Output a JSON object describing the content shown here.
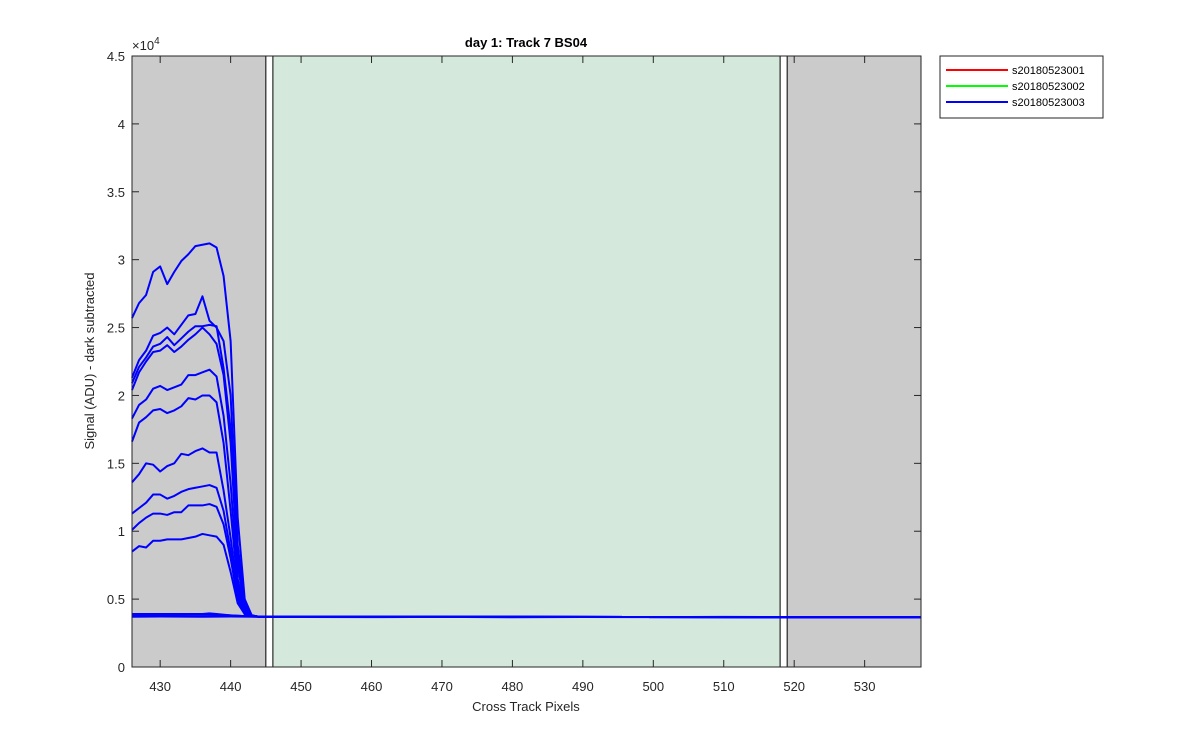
{
  "chart_data": {
    "type": "line",
    "title": "day 1: Track 7  BS04",
    "xlabel": "Cross Track Pixels",
    "ylabel": "Signal (ADU) - dark subtracted",
    "xlim": [
      426,
      538
    ],
    "ylim": [
      0,
      45000
    ],
    "y_exponent_label": "×10",
    "y_exponent_power": "4",
    "xticks": [
      430,
      440,
      450,
      460,
      470,
      480,
      490,
      500,
      510,
      520,
      530
    ],
    "yticks": [
      0,
      5000,
      10000,
      15000,
      20000,
      25000,
      30000,
      35000,
      40000,
      45000
    ],
    "ytick_labels": [
      "0",
      "0.5",
      "1",
      "1.5",
      "2",
      "2.5",
      "3",
      "3.5",
      "4",
      "4.5"
    ],
    "grid": false,
    "legend_position": "outside-top-right",
    "regions": [
      {
        "kind": "excluded",
        "x": [
          426,
          445
        ],
        "color": "#cbcbcb"
      },
      {
        "kind": "active",
        "x": [
          446,
          518
        ],
        "color": "#d5e8dc"
      },
      {
        "kind": "excluded",
        "x": [
          519,
          538
        ],
        "color": "#cbcbcb"
      }
    ],
    "region_edges": [
      445,
      446,
      518,
      519
    ],
    "series": [
      {
        "name": "s20180523001",
        "color": "#ff0000",
        "lines": []
      },
      {
        "name": "s20180523002",
        "color": "#00ff00",
        "lines": []
      },
      {
        "name": "s20180523003",
        "color": "#0000ff",
        "lines": [
          {
            "x": [
              426,
              427,
              428,
              429,
              430,
              431,
              432,
              433,
              434,
              435,
              436,
              437,
              438,
              439,
              440,
              441,
              442,
              443,
              444,
              445,
              450,
              460,
              470,
              480,
              490,
              500,
              510,
              520,
              530,
              538
            ],
            "y": [
              25700,
              26800,
              27400,
              29100,
              29500,
              28200,
              29100,
              29900,
              30400,
              31000,
              31100,
              31200,
              30900,
              28800,
              24000,
              11000,
              5000,
              3800,
              3700,
              3700,
              3680,
              3670,
              3690,
              3660,
              3680,
              3670,
              3690,
              3670,
              3680,
              3670
            ]
          },
          {
            "x": [
              426,
              427,
              428,
              429,
              430,
              431,
              432,
              433,
              434,
              435,
              436,
              437,
              438,
              439,
              440,
              441,
              442,
              443,
              444,
              538
            ],
            "y": [
              21300,
              22600,
              23300,
              24400,
              24600,
              25000,
              24500,
              25200,
              25900,
              26000,
              27300,
              25500,
              25000,
              24000,
              20000,
              9000,
              4700,
              3800,
              3700,
              3670
            ]
          },
          {
            "x": [
              426,
              427,
              428,
              429,
              430,
              431,
              432,
              433,
              434,
              435,
              436,
              437,
              438,
              439,
              440,
              441,
              442,
              443,
              444,
              538
            ],
            "y": [
              20900,
              22100,
              22800,
              23600,
              23800,
              24300,
              23700,
              24200,
              24700,
              25100,
              25100,
              25200,
              25100,
              22000,
              17500,
              8000,
              4500,
              3800,
              3700,
              3670
            ]
          },
          {
            "x": [
              426,
              427,
              428,
              429,
              430,
              431,
              432,
              433,
              434,
              435,
              436,
              437,
              438,
              439,
              440,
              441,
              442,
              443,
              444,
              538
            ],
            "y": [
              20400,
              21700,
              22500,
              23200,
              23300,
              23700,
              23200,
              23600,
              24100,
              24500,
              25000,
              24500,
              23800,
              21500,
              16500,
              7500,
              4400,
              3800,
              3700,
              3670
            ]
          },
          {
            "x": [
              426,
              427,
              428,
              429,
              430,
              431,
              432,
              433,
              434,
              435,
              436,
              437,
              438,
              439,
              440,
              441,
              442,
              443,
              444,
              538
            ],
            "y": [
              18300,
              19300,
              19700,
              20500,
              20700,
              20400,
              20600,
              20800,
              21500,
              21500,
              21700,
              21900,
              21400,
              18500,
              13500,
              6500,
              4200,
              3800,
              3700,
              3670
            ]
          },
          {
            "x": [
              426,
              427,
              428,
              429,
              430,
              431,
              432,
              433,
              434,
              435,
              436,
              437,
              438,
              439,
              440,
              441,
              442,
              443,
              444,
              538
            ],
            "y": [
              16600,
              18000,
              18400,
              18900,
              19000,
              18700,
              18900,
              19200,
              19800,
              19700,
              20000,
              20000,
              19500,
              16500,
              11500,
              6000,
              4100,
              3800,
              3700,
              3670
            ]
          },
          {
            "x": [
              426,
              427,
              428,
              429,
              430,
              431,
              432,
              433,
              434,
              435,
              436,
              437,
              438,
              439,
              440,
              441,
              442,
              443,
              444,
              538
            ],
            "y": [
              13600,
              14200,
              15000,
              14900,
              14400,
              14800,
              15000,
              15700,
              15600,
              15900,
              16100,
              15800,
              15800,
              13000,
              9500,
              5500,
              4000,
              3800,
              3700,
              3670
            ]
          },
          {
            "x": [
              426,
              427,
              428,
              429,
              430,
              431,
              432,
              433,
              434,
              435,
              436,
              437,
              438,
              439,
              440,
              441,
              442,
              443,
              444,
              538
            ],
            "y": [
              11300,
              11700,
              12100,
              12700,
              12700,
              12400,
              12600,
              12900,
              13100,
              13200,
              13300,
              13400,
              13200,
              11500,
              8500,
              5200,
              3900,
              3800,
              3700,
              3670
            ]
          },
          {
            "x": [
              426,
              427,
              428,
              429,
              430,
              431,
              432,
              433,
              434,
              435,
              436,
              437,
              438,
              439,
              440,
              441,
              442,
              443,
              444,
              538
            ],
            "y": [
              10100,
              10600,
              11000,
              11300,
              11300,
              11200,
              11400,
              11400,
              11900,
              11900,
              11900,
              12000,
              11800,
              10500,
              8000,
              5000,
              3900,
              3800,
              3700,
              3670
            ]
          },
          {
            "x": [
              426,
              427,
              428,
              429,
              430,
              431,
              432,
              433,
              434,
              435,
              436,
              437,
              438,
              439,
              440,
              441,
              442,
              443,
              444,
              538
            ],
            "y": [
              8500,
              8900,
              8800,
              9300,
              9300,
              9400,
              9400,
              9400,
              9500,
              9600,
              9800,
              9700,
              9600,
              9000,
              7000,
              4700,
              3900,
              3800,
              3700,
              3670
            ]
          },
          {
            "x": [
              426,
              430,
              436,
              437,
              438,
              440,
              442,
              444,
              538
            ],
            "y": [
              3900,
              3900,
              3900,
              3950,
              3900,
              3800,
              3750,
              3700,
              3670
            ]
          },
          {
            "x": [
              426,
              430,
              436,
              440,
              442,
              444,
              538
            ],
            "y": [
              3800,
              3820,
              3850,
              3800,
              3750,
              3700,
              3670
            ]
          },
          {
            "x": [
              426,
              430,
              436,
              440,
              444,
              538
            ],
            "y": [
              3700,
              3720,
              3700,
              3720,
              3700,
              3670
            ]
          }
        ]
      }
    ]
  }
}
